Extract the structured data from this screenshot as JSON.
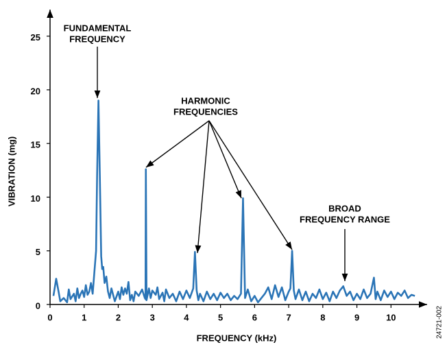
{
  "chart_data": {
    "type": "line",
    "x_label": "FREQUENCY (kHz)",
    "y_label": "VIBRATION (mg)",
    "color": "#2a74b6",
    "xlim": [
      0,
      11.1
    ],
    "ylim": [
      0,
      27.6
    ],
    "xticks": [
      0,
      1,
      2,
      3,
      4,
      5,
      6,
      7,
      8,
      9,
      10
    ],
    "yticks": [
      0,
      5,
      10,
      15,
      20,
      25
    ],
    "x": [
      0.1,
      0.18,
      0.25,
      0.3,
      0.4,
      0.5,
      0.55,
      0.6,
      0.7,
      0.75,
      0.8,
      0.85,
      0.9,
      0.95,
      1.0,
      1.05,
      1.1,
      1.15,
      1.2,
      1.25,
      1.3,
      1.35,
      1.38,
      1.42,
      1.46,
      1.5,
      1.53,
      1.56,
      1.6,
      1.65,
      1.7,
      1.75,
      1.8,
      1.9,
      2.0,
      2.05,
      2.1,
      2.15,
      2.2,
      2.25,
      2.3,
      2.35,
      2.4,
      2.45,
      2.5,
      2.6,
      2.7,
      2.78,
      2.8,
      2.81,
      2.83,
      2.9,
      2.95,
      3.0,
      3.1,
      3.15,
      3.2,
      3.3,
      3.35,
      3.4,
      3.5,
      3.6,
      3.7,
      3.8,
      3.9,
      4.0,
      4.1,
      4.2,
      4.25,
      4.3,
      4.35,
      4.4,
      4.5,
      4.6,
      4.7,
      4.8,
      4.9,
      5.0,
      5.1,
      5.2,
      5.3,
      5.4,
      5.5,
      5.6,
      5.66,
      5.72,
      5.8,
      5.9,
      6.0,
      6.1,
      6.2,
      6.3,
      6.4,
      6.5,
      6.6,
      6.7,
      6.8,
      6.9,
      7.0,
      7.05,
      7.1,
      7.15,
      7.2,
      7.3,
      7.4,
      7.5,
      7.6,
      7.7,
      7.8,
      7.9,
      8.0,
      8.1,
      8.2,
      8.3,
      8.4,
      8.5,
      8.6,
      8.7,
      8.8,
      8.9,
      9.0,
      9.1,
      9.2,
      9.3,
      9.4,
      9.5,
      9.55,
      9.6,
      9.7,
      9.8,
      9.9,
      10.0,
      10.1,
      10.2,
      10.3,
      10.4,
      10.5,
      10.6,
      10.7
    ],
    "values": [
      0.8,
      2.4,
      1.2,
      0.3,
      0.6,
      0.2,
      1.4,
      0.5,
      1.0,
      0.3,
      1.5,
      0.6,
      1.0,
      1.3,
      0.7,
      1.8,
      0.9,
      1.2,
      2.0,
      1.0,
      3.0,
      5.0,
      12,
      19,
      12,
      4.5,
      3.3,
      3.5,
      2.0,
      2.6,
      1.2,
      0.6,
      1.5,
      0.3,
      1.2,
      0.5,
      1.6,
      0.9,
      1.5,
      1.0,
      2.1,
      0.4,
      0.9,
      0.3,
      1.2,
      0.8,
      1.4,
      0.6,
      0.5,
      12.6,
      0.4,
      1.5,
      0.6,
      1.3,
      0.9,
      1.6,
      0.5,
      1.1,
      0.3,
      1.4,
      0.6,
      1.0,
      0.3,
      1.2,
      0.5,
      1.3,
      0.6,
      1.5,
      4.9,
      1.3,
      0.4,
      1.0,
      0.3,
      1.2,
      0.5,
      1.0,
      0.4,
      1.1,
      0.6,
      1.0,
      0.4,
      0.8,
      0.5,
      1.0,
      9.9,
      0.6,
      1.4,
      0.3,
      0.8,
      0.2,
      0.6,
      1.0,
      1.6,
      0.5,
      1.8,
      0.7,
      1.6,
      0.4,
      1.2,
      1.5,
      5.0,
      1.3,
      0.5,
      1.4,
      0.4,
      1.2,
      0.3,
      1.0,
      0.6,
      1.4,
      0.5,
      1.1,
      0.3,
      1.2,
      0.6,
      1.3,
      1.7,
      0.8,
      1.2,
      0.4,
      1.0,
      0.5,
      1.4,
      0.6,
      1.0,
      2.5,
      0.5,
      1.2,
      0.4,
      1.3,
      0.7,
      1.2,
      0.5,
      1.1,
      0.8,
      1.3,
      0.6,
      0.9,
      0.8
    ],
    "annotations": [
      {
        "lines": [
          "FUNDAMENTAL",
          "FREQUENCY"
        ]
      },
      {
        "lines": [
          "HARMONIC",
          "FREQUENCIES"
        ]
      },
      {
        "lines": [
          "BROAD",
          "FREQUENCY RANGE"
        ]
      }
    ],
    "figure_code": "24721-002"
  }
}
